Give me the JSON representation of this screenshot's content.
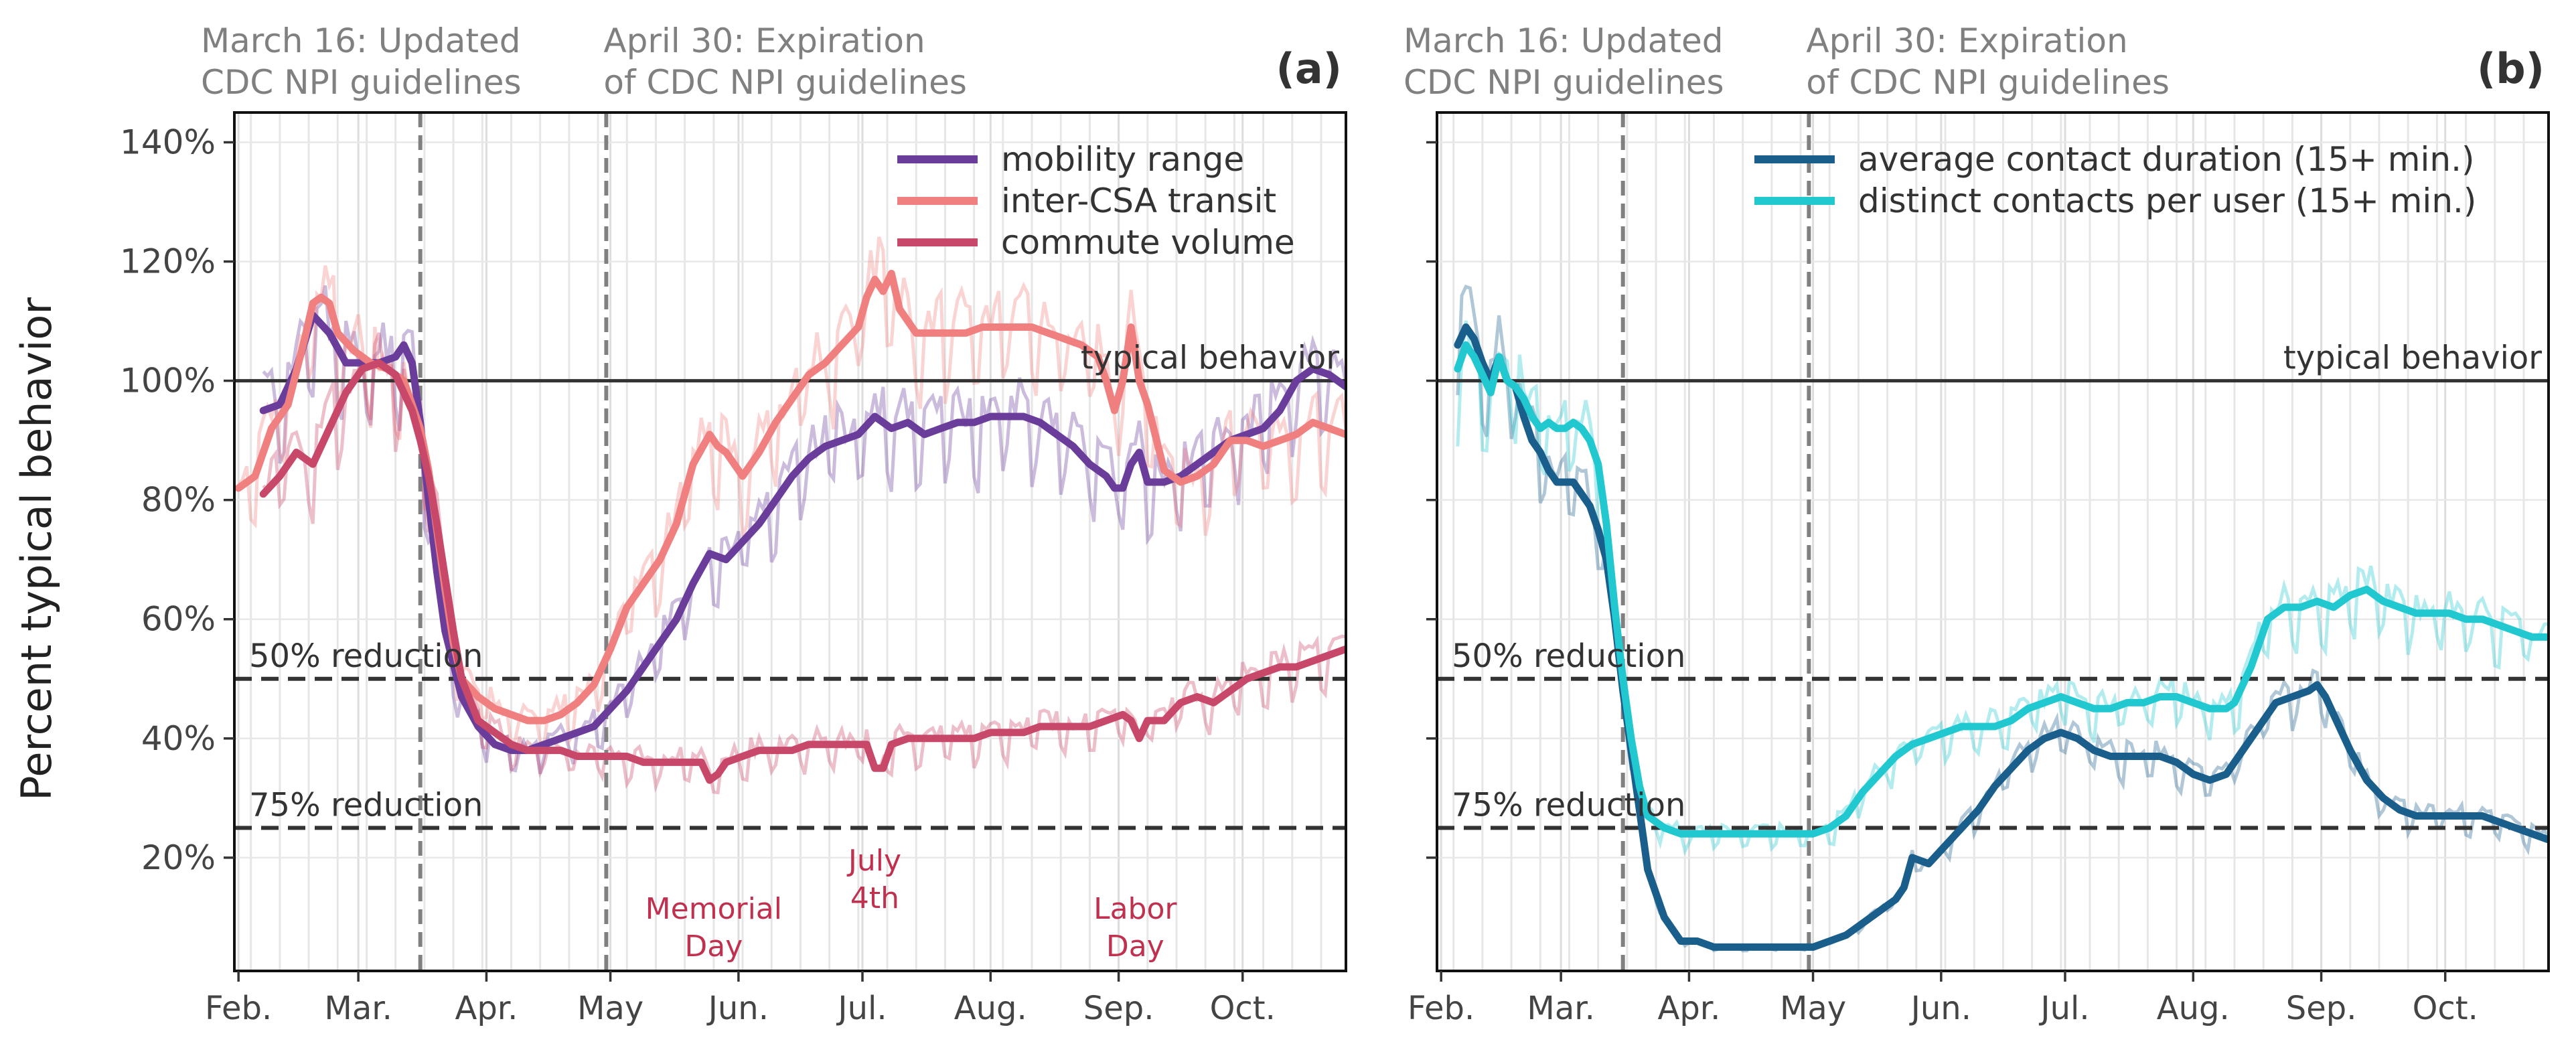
{
  "ylabel": "Percent typical behavior",
  "typical_label": "typical behavior",
  "reductions": [
    {
      "label": "50% reduction",
      "value": 50
    },
    {
      "label": "75% reduction",
      "value": 25
    }
  ],
  "events": [
    {
      "lines": [
        "March 16: Updated",
        "CDC NPI guidelines"
      ],
      "day": 44
    },
    {
      "lines": [
        "April 30: Expiration",
        "of CDC NPI guidelines"
      ],
      "day": 89
    }
  ],
  "holidays": [
    {
      "lines": [
        "Memorial",
        "Day"
      ],
      "day": 115
    },
    {
      "lines": [
        "July",
        "4th"
      ],
      "day": 154
    },
    {
      "lines": [
        "Labor",
        "Day"
      ],
      "day": 217
    }
  ],
  "colors": {
    "mobility": "#6a3d9a",
    "transit": "#f08080",
    "commute": "#c8486a",
    "duration": "#1a5e8c",
    "contacts": "#22c8d0",
    "reference": "#333333",
    "event": "#808080",
    "holiday_text": "#c0304f"
  },
  "chart_data": [
    {
      "type": "line",
      "panel": "(a)",
      "xaxis": "date 2020",
      "xticks": [
        {
          "label": "Feb.",
          "day": 0
        },
        {
          "label": "Mar.",
          "day": 29
        },
        {
          "label": "Apr.",
          "day": 60
        },
        {
          "label": "May",
          "day": 90
        },
        {
          "label": "Jun.",
          "day": 121
        },
        {
          "label": "Jul.",
          "day": 151
        },
        {
          "label": "Aug.",
          "day": 182
        },
        {
          "label": "Sep.",
          "day": 213
        },
        {
          "label": "Oct.",
          "day": 243
        }
      ],
      "yticks": [
        {
          "label": "20%",
          "value": 20
        },
        {
          "label": "40%",
          "value": 40
        },
        {
          "label": "60%",
          "value": 60
        },
        {
          "label": "80%",
          "value": 80
        },
        {
          "label": "100%",
          "value": 100
        },
        {
          "label": "120%",
          "value": 120
        },
        {
          "label": "140%",
          "value": 140
        }
      ],
      "xlim": [
        -1,
        268
      ],
      "ylim": [
        1,
        145
      ],
      "grid": true,
      "legend_position": "top-right",
      "series": [
        {
          "name": "mobility range",
          "color": "#6a3d9a",
          "x": [
            6,
            10,
            14,
            18,
            22,
            26,
            30,
            34,
            38,
            40,
            42,
            44,
            46,
            48,
            50,
            54,
            58,
            62,
            66,
            70,
            74,
            78,
            82,
            86,
            90,
            94,
            98,
            102,
            106,
            110,
            114,
            118,
            122,
            126,
            130,
            134,
            138,
            142,
            146,
            150,
            154,
            158,
            162,
            166,
            170,
            174,
            178,
            182,
            186,
            190,
            194,
            198,
            202,
            206,
            210,
            212,
            214,
            216,
            218,
            220,
            224,
            228,
            232,
            236,
            240,
            244,
            248,
            252,
            256,
            260,
            264,
            268
          ],
          "values": [
            95,
            96,
            102,
            111,
            108,
            103,
            103,
            103,
            104,
            106,
            103,
            93,
            80,
            68,
            58,
            47,
            42,
            39,
            38,
            38,
            39,
            40,
            41,
            42,
            45,
            48,
            52,
            56,
            60,
            66,
            71,
            70,
            73,
            76,
            80,
            84,
            87,
            89,
            90,
            91,
            94,
            92,
            93,
            91,
            92,
            93,
            93,
            94,
            94,
            94,
            93,
            91,
            89,
            86,
            84,
            82,
            82,
            86,
            88,
            83,
            83,
            84,
            86,
            88,
            90,
            91,
            92,
            95,
            100,
            102,
            101,
            99
          ]
        },
        {
          "name": "inter-CSA transit",
          "color": "#f08080",
          "x": [
            0,
            4,
            8,
            12,
            16,
            18,
            20,
            22,
            24,
            28,
            32,
            36,
            40,
            42,
            44,
            46,
            48,
            50,
            52,
            54,
            58,
            62,
            66,
            70,
            74,
            78,
            82,
            86,
            90,
            94,
            98,
            102,
            106,
            110,
            114,
            116,
            118,
            122,
            126,
            130,
            134,
            138,
            142,
            146,
            150,
            152,
            154,
            156,
            158,
            160,
            164,
            168,
            172,
            176,
            180,
            184,
            188,
            192,
            196,
            200,
            204,
            208,
            210,
            212,
            214,
            216,
            218,
            220,
            224,
            228,
            232,
            236,
            240,
            244,
            248,
            252,
            256,
            260,
            264,
            268
          ],
          "values": [
            82,
            84,
            92,
            96,
            107,
            113,
            114,
            113,
            108,
            105,
            103,
            102,
            100,
            96,
            92,
            85,
            75,
            65,
            56,
            50,
            47,
            45,
            44,
            43,
            43,
            44,
            46,
            49,
            55,
            62,
            66,
            70,
            76,
            86,
            91,
            89,
            88,
            84,
            88,
            93,
            97,
            101,
            103,
            106,
            109,
            114,
            117,
            115,
            118,
            112,
            108,
            108,
            108,
            108,
            109,
            109,
            109,
            109,
            108,
            107,
            106,
            104,
            100,
            95,
            100,
            109,
            100,
            96,
            85,
            83,
            84,
            86,
            90,
            90,
            89,
            90,
            91,
            93,
            92,
            91
          ]
        },
        {
          "name": "commute volume",
          "color": "#c8486a",
          "x": [
            6,
            10,
            14,
            18,
            22,
            26,
            30,
            34,
            38,
            40,
            42,
            44,
            46,
            48,
            50,
            52,
            54,
            58,
            62,
            66,
            70,
            74,
            78,
            82,
            86,
            90,
            94,
            98,
            102,
            106,
            110,
            112,
            114,
            116,
            118,
            122,
            126,
            130,
            134,
            138,
            142,
            146,
            150,
            152,
            154,
            156,
            158,
            162,
            166,
            170,
            174,
            178,
            182,
            186,
            190,
            194,
            198,
            202,
            206,
            210,
            214,
            216,
            218,
            220,
            224,
            228,
            232,
            236,
            240,
            244,
            248,
            252,
            256,
            260,
            264,
            268
          ],
          "values": [
            81,
            84,
            88,
            86,
            92,
            98,
            102,
            103,
            101,
            98,
            95,
            90,
            84,
            76,
            67,
            58,
            50,
            43,
            41,
            39,
            38,
            38,
            38,
            37,
            37,
            37,
            37,
            36,
            36,
            36,
            36,
            36,
            33,
            34,
            36,
            37,
            38,
            38,
            38,
            39,
            39,
            39,
            39,
            39,
            35,
            35,
            39,
            40,
            40,
            40,
            40,
            40,
            41,
            41,
            41,
            42,
            42,
            42,
            42,
            43,
            44,
            43,
            40,
            43,
            43,
            46,
            47,
            46,
            48,
            50,
            51,
            52,
            52,
            53,
            54,
            55
          ]
        }
      ],
      "holidays": [
        "Memorial Day",
        "July 4th",
        "Labor Day"
      ]
    },
    {
      "type": "line",
      "panel": "(b)",
      "xaxis": "date 2020",
      "xticks": [
        {
          "label": "Feb.",
          "day": 0
        },
        {
          "label": "Mar.",
          "day": 29
        },
        {
          "label": "Apr.",
          "day": 60
        },
        {
          "label": "May",
          "day": 90
        },
        {
          "label": "Jun.",
          "day": 121
        },
        {
          "label": "Jul.",
          "day": 151
        },
        {
          "label": "Aug.",
          "day": 182
        },
        {
          "label": "Sep.",
          "day": 213
        },
        {
          "label": "Oct.",
          "day": 243
        }
      ],
      "ylim": [
        1,
        145
      ],
      "xlim": [
        -1,
        268
      ],
      "grid": true,
      "legend_position": "top-right",
      "series": [
        {
          "name": "average contact duration (15+ min.)",
          "color": "#1a5e8c",
          "x": [
            4,
            6,
            8,
            10,
            12,
            14,
            16,
            18,
            20,
            22,
            24,
            26,
            28,
            30,
            32,
            34,
            36,
            38,
            40,
            42,
            44,
            46,
            48,
            50,
            54,
            58,
            62,
            66,
            70,
            74,
            78,
            82,
            86,
            90,
            94,
            98,
            100,
            102,
            104,
            106,
            108,
            110,
            112,
            114,
            118,
            122,
            126,
            130,
            134,
            138,
            142,
            146,
            150,
            154,
            158,
            162,
            166,
            170,
            174,
            178,
            182,
            186,
            190,
            194,
            198,
            202,
            206,
            210,
            212,
            214,
            216,
            220,
            224,
            228,
            232,
            236,
            240,
            244,
            248,
            252,
            256,
            260,
            264,
            268
          ],
          "values": [
            106,
            109,
            107,
            103,
            100,
            104,
            100,
            99,
            94,
            90,
            88,
            85,
            83,
            83,
            83,
            81,
            79,
            75,
            70,
            60,
            48,
            38,
            28,
            18,
            10,
            6,
            6,
            5,
            5,
            5,
            5,
            5,
            5,
            5,
            6,
            7,
            8,
            9,
            10,
            11,
            12,
            13,
            15,
            20,
            19,
            22,
            25,
            28,
            32,
            35,
            38,
            40,
            41,
            40,
            38,
            37,
            37,
            37,
            37,
            36,
            34,
            33,
            34,
            38,
            42,
            46,
            47,
            48,
            49,
            47,
            44,
            38,
            33,
            30,
            28,
            27,
            27,
            27,
            27,
            27,
            26,
            25,
            24,
            23
          ]
        },
        {
          "name": "distinct contacts per user (15+ min.)",
          "color": "#22c8d0",
          "x": [
            4,
            6,
            8,
            10,
            12,
            14,
            16,
            18,
            20,
            22,
            24,
            26,
            28,
            30,
            32,
            34,
            36,
            38,
            40,
            42,
            44,
            46,
            48,
            50,
            54,
            58,
            62,
            66,
            70,
            74,
            78,
            82,
            86,
            90,
            94,
            98,
            102,
            106,
            110,
            114,
            118,
            122,
            126,
            130,
            134,
            138,
            142,
            146,
            150,
            154,
            158,
            162,
            166,
            170,
            174,
            178,
            182,
            186,
            190,
            192,
            196,
            200,
            204,
            208,
            212,
            216,
            220,
            224,
            228,
            232,
            236,
            240,
            244,
            248,
            252,
            256,
            260,
            264,
            268
          ],
          "values": [
            102,
            106,
            104,
            101,
            98,
            104,
            100,
            99,
            97,
            94,
            92,
            93,
            92,
            92,
            93,
            92,
            90,
            86,
            76,
            62,
            50,
            40,
            32,
            27,
            25,
            24,
            24,
            24,
            24,
            24,
            24,
            24,
            24,
            24,
            25,
            27,
            31,
            34,
            37,
            39,
            40,
            41,
            42,
            42,
            42,
            43,
            45,
            46,
            47,
            46,
            45,
            45,
            46,
            46,
            47,
            47,
            46,
            45,
            45,
            46,
            52,
            60,
            62,
            62,
            63,
            62,
            64,
            65,
            63,
            62,
            61,
            61,
            61,
            60,
            60,
            59,
            58,
            57,
            57
          ]
        }
      ]
    }
  ]
}
